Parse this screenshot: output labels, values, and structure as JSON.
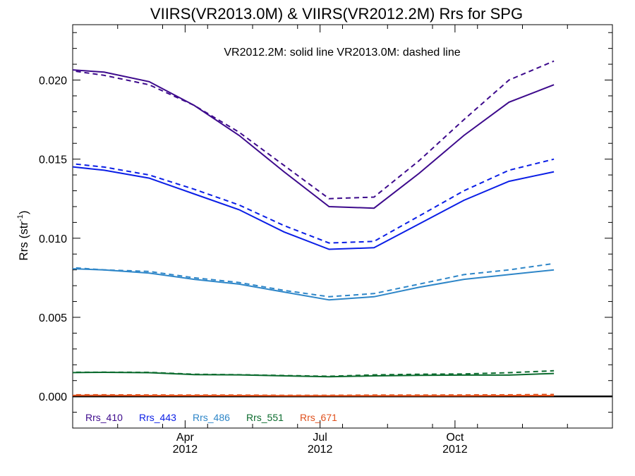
{
  "chart_data": {
    "type": "line",
    "title": "VIIRS(VR2013.0M) & VIIRS(VR2012.2M)  Rrs for SPG",
    "annotation": "VR2012.2M: solid line   VR2013.0M: dashed line",
    "ylabel": "Rrs (str",
    "ylabel_sup": "-1",
    "ylabel_close": ")",
    "xlim": [
      0,
      12
    ],
    "ylim": [
      -0.002,
      0.0235
    ],
    "y_ticks": [
      0.0,
      0.005,
      0.01,
      0.015,
      0.02
    ],
    "y_tick_labels": [
      "0.000",
      "0.005",
      "0.010",
      "0.015",
      "0.020"
    ],
    "x_ticks": [
      {
        "month": "Apr",
        "year": "2012",
        "pos": 2.5
      },
      {
        "month": "Jul",
        "year": "2012",
        "pos": 5.5
      },
      {
        "month": "Oct",
        "year": "2012",
        "pos": 8.5
      }
    ],
    "x": [
      -0.3,
      0.7,
      1.7,
      2.7,
      3.7,
      4.7,
      5.7,
      6.7,
      7.7,
      8.7,
      9.7,
      10.7
    ],
    "series": [
      {
        "name": "Rrs_410",
        "color": "#3d0a8c",
        "solid": [
          0.0207,
          0.0205,
          0.0199,
          0.0184,
          0.0165,
          0.0142,
          0.012,
          0.0119,
          0.0141,
          0.0165,
          0.0186,
          0.0197
        ],
        "dashed": [
          0.0207,
          0.0203,
          0.0197,
          0.0184,
          0.0167,
          0.0146,
          0.0125,
          0.0126,
          0.0149,
          0.0175,
          0.02,
          0.0212
        ]
      },
      {
        "name": "Rrs_443",
        "color": "#0a1ee6",
        "solid": [
          0.0146,
          0.0143,
          0.0138,
          0.0128,
          0.0118,
          0.0104,
          0.0093,
          0.0094,
          0.0109,
          0.0124,
          0.0136,
          0.0142
        ],
        "dashed": [
          0.0148,
          0.0145,
          0.014,
          0.0131,
          0.0121,
          0.0108,
          0.0097,
          0.0098,
          0.0114,
          0.013,
          0.0143,
          0.015
        ]
      },
      {
        "name": "Rrs_486",
        "color": "#2e86c8",
        "solid": [
          0.0081,
          0.008,
          0.0078,
          0.0074,
          0.0071,
          0.0066,
          0.0061,
          0.0063,
          0.0069,
          0.0074,
          0.0077,
          0.008
        ],
        "dashed": [
          0.0082,
          0.008,
          0.0079,
          0.0075,
          0.0072,
          0.0067,
          0.0063,
          0.0065,
          0.0071,
          0.0077,
          0.008,
          0.0084
        ]
      },
      {
        "name": "Rrs_551",
        "color": "#0b6b2e",
        "solid": [
          0.0015,
          0.00152,
          0.0015,
          0.00138,
          0.00136,
          0.0013,
          0.00124,
          0.0013,
          0.00133,
          0.00135,
          0.00135,
          0.00145
        ],
        "dashed": [
          0.00152,
          0.00153,
          0.00152,
          0.0014,
          0.00137,
          0.00132,
          0.00127,
          0.00136,
          0.0014,
          0.00142,
          0.0015,
          0.00162
        ]
      },
      {
        "name": "Rrs_671",
        "color": "#e0501c",
        "solid": [
          6e-05,
          6e-05,
          5e-05,
          5e-05,
          5e-05,
          4e-05,
          4e-05,
          4e-05,
          4e-05,
          4e-05,
          5e-05,
          5e-05
        ],
        "dashed": [
          0.0001,
          0.0001,
          9e-05,
          8e-05,
          8e-05,
          7e-05,
          7e-05,
          8e-05,
          8e-05,
          9e-05,
          0.0001,
          0.00012
        ]
      }
    ],
    "zero_line": {
      "y": 0.0,
      "color": "#000000"
    },
    "grid": false,
    "legend_position": "bottom-left"
  }
}
